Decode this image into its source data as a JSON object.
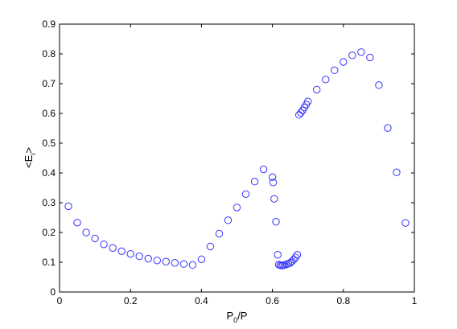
{
  "chart_data": {
    "type": "scatter",
    "title": "",
    "xlabel": "P",
    "xlabel_sub": "0",
    "xlabel_suffix": "/P",
    "ylabel": "<E",
    "ylabel_sub": "i",
    "ylabel_suffix": ">",
    "xlim": [
      0,
      1
    ],
    "ylim": [
      0,
      0.9
    ],
    "xticks": [
      0,
      0.2,
      0.4,
      0.6,
      0.8,
      1
    ],
    "xtick_labels": [
      "0",
      "0.2",
      "0.4",
      "0.6",
      "0.8",
      "1"
    ],
    "yticks": [
      0,
      0.1,
      0.2,
      0.3,
      0.4,
      0.5,
      0.6,
      0.7,
      0.8,
      0.9
    ],
    "ytick_labels": [
      "0",
      "0.1",
      "0.2",
      "0.3",
      "0.4",
      "0.5",
      "0.6",
      "0.7",
      "0.8",
      "0.9"
    ],
    "grid": false,
    "marker": "open-circle",
    "marker_color": "#3333ff",
    "series": [
      {
        "x": [
          0.025,
          0.05,
          0.075,
          0.1,
          0.125,
          0.15,
          0.175,
          0.2,
          0.225,
          0.25,
          0.275,
          0.3,
          0.325,
          0.35,
          0.375,
          0.4,
          0.425,
          0.45,
          0.475,
          0.5,
          0.525,
          0.55,
          0.575,
          0.6,
          0.602,
          0.605,
          0.61,
          0.615,
          0.618,
          0.622,
          0.626,
          0.63,
          0.635,
          0.64,
          0.645,
          0.65,
          0.655,
          0.66,
          0.665,
          0.67,
          0.675,
          0.68,
          0.685,
          0.69,
          0.695,
          0.7,
          0.725,
          0.75,
          0.775,
          0.8,
          0.825,
          0.85,
          0.875,
          0.9,
          0.925,
          0.95,
          0.975
        ],
        "y": [
          0.288,
          0.233,
          0.2,
          0.18,
          0.16,
          0.148,
          0.137,
          0.128,
          0.12,
          0.112,
          0.106,
          0.102,
          0.098,
          0.094,
          0.091,
          0.11,
          0.153,
          0.196,
          0.241,
          0.284,
          0.329,
          0.371,
          0.412,
          0.386,
          0.368,
          0.313,
          0.236,
          0.125,
          0.092,
          0.09,
          0.089,
          0.09,
          0.091,
          0.093,
          0.095,
          0.098,
          0.103,
          0.109,
          0.116,
          0.125,
          0.595,
          0.602,
          0.61,
          0.62,
          0.63,
          0.64,
          0.68,
          0.714,
          0.745,
          0.773,
          0.795,
          0.806,
          0.788,
          0.695,
          0.551,
          0.402,
          0.232
        ]
      }
    ]
  }
}
